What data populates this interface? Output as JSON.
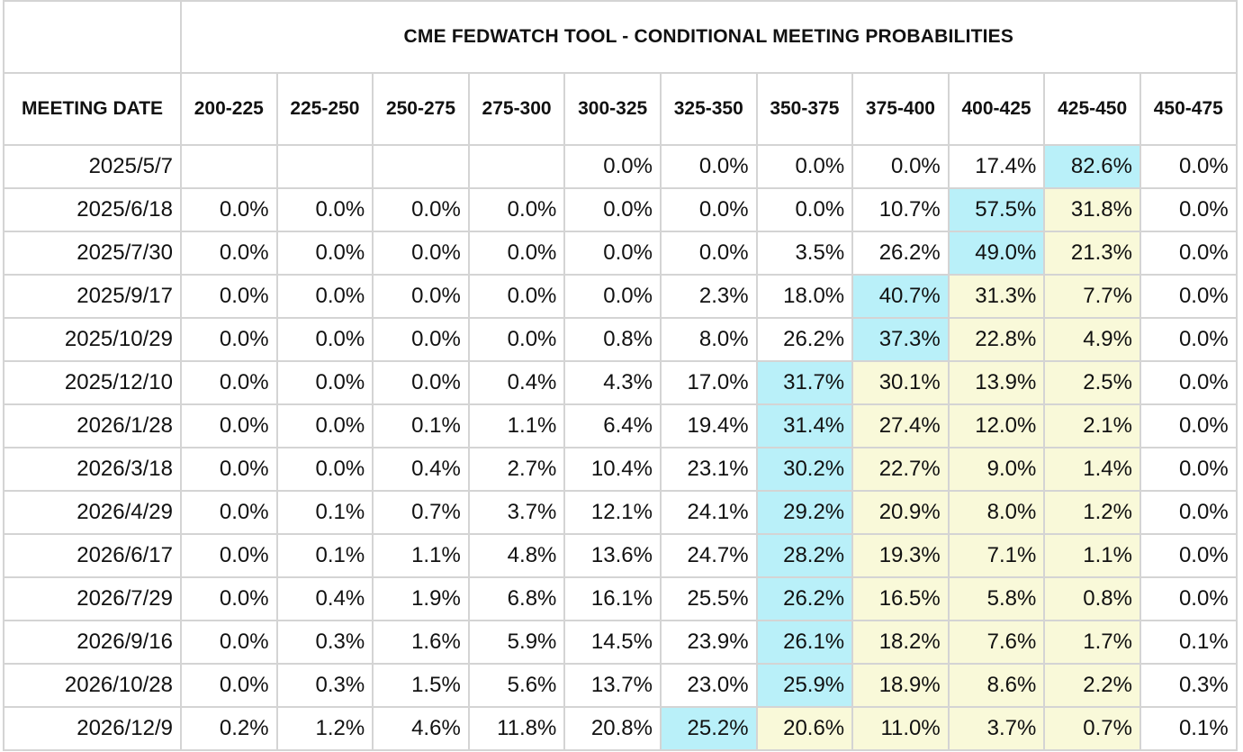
{
  "chart_data": {
    "type": "table",
    "title": "CME FEDWATCH TOOL - CONDITIONAL MEETING PROBABILITIES",
    "row_header_label": "MEETING DATE",
    "columns": [
      "200-225",
      "225-250",
      "250-275",
      "275-300",
      "300-325",
      "325-350",
      "350-375",
      "375-400",
      "400-425",
      "425-450",
      "450-475"
    ],
    "rows": [
      {
        "date": "2025/5/7",
        "values": [
          "",
          "",
          "",
          "",
          "0.0%",
          "0.0%",
          "0.0%",
          "0.0%",
          "17.4%",
          "82.6%",
          "0.0%"
        ]
      },
      {
        "date": "2025/6/18",
        "values": [
          "0.0%",
          "0.0%",
          "0.0%",
          "0.0%",
          "0.0%",
          "0.0%",
          "0.0%",
          "10.7%",
          "57.5%",
          "31.8%",
          "0.0%"
        ]
      },
      {
        "date": "2025/7/30",
        "values": [
          "0.0%",
          "0.0%",
          "0.0%",
          "0.0%",
          "0.0%",
          "0.0%",
          "3.5%",
          "26.2%",
          "49.0%",
          "21.3%",
          "0.0%"
        ]
      },
      {
        "date": "2025/9/17",
        "values": [
          "0.0%",
          "0.0%",
          "0.0%",
          "0.0%",
          "0.0%",
          "2.3%",
          "18.0%",
          "40.7%",
          "31.3%",
          "7.7%",
          "0.0%"
        ]
      },
      {
        "date": "2025/10/29",
        "values": [
          "0.0%",
          "0.0%",
          "0.0%",
          "0.0%",
          "0.8%",
          "8.0%",
          "26.2%",
          "37.3%",
          "22.8%",
          "4.9%",
          "0.0%"
        ]
      },
      {
        "date": "2025/12/10",
        "values": [
          "0.0%",
          "0.0%",
          "0.0%",
          "0.4%",
          "4.3%",
          "17.0%",
          "31.7%",
          "30.1%",
          "13.9%",
          "2.5%",
          "0.0%"
        ]
      },
      {
        "date": "2026/1/28",
        "values": [
          "0.0%",
          "0.0%",
          "0.1%",
          "1.1%",
          "6.4%",
          "19.4%",
          "31.4%",
          "27.4%",
          "12.0%",
          "2.1%",
          "0.0%"
        ]
      },
      {
        "date": "2026/3/18",
        "values": [
          "0.0%",
          "0.0%",
          "0.4%",
          "2.7%",
          "10.4%",
          "23.1%",
          "30.2%",
          "22.7%",
          "9.0%",
          "1.4%",
          "0.0%"
        ]
      },
      {
        "date": "2026/4/29",
        "values": [
          "0.0%",
          "0.1%",
          "0.7%",
          "3.7%",
          "12.1%",
          "24.1%",
          "29.2%",
          "20.9%",
          "8.0%",
          "1.2%",
          "0.0%"
        ]
      },
      {
        "date": "2026/6/17",
        "values": [
          "0.0%",
          "0.1%",
          "1.1%",
          "4.8%",
          "13.6%",
          "24.7%",
          "28.2%",
          "19.3%",
          "7.1%",
          "1.1%",
          "0.0%"
        ]
      },
      {
        "date": "2026/7/29",
        "values": [
          "0.0%",
          "0.4%",
          "1.9%",
          "6.8%",
          "16.1%",
          "25.5%",
          "26.2%",
          "16.5%",
          "5.8%",
          "0.8%",
          "0.0%"
        ]
      },
      {
        "date": "2026/9/16",
        "values": [
          "0.0%",
          "0.3%",
          "1.6%",
          "5.9%",
          "14.5%",
          "23.9%",
          "26.1%",
          "18.2%",
          "7.6%",
          "1.7%",
          "0.1%"
        ]
      },
      {
        "date": "2026/10/28",
        "values": [
          "0.0%",
          "0.3%",
          "1.5%",
          "5.6%",
          "13.7%",
          "23.0%",
          "25.9%",
          "18.9%",
          "8.6%",
          "2.2%",
          "0.3%"
        ]
      },
      {
        "date": "2026/12/9",
        "values": [
          "0.2%",
          "1.2%",
          "4.6%",
          "11.8%",
          "20.8%",
          "25.2%",
          "20.6%",
          "11.0%",
          "3.7%",
          "0.7%",
          "0.1%"
        ]
      }
    ],
    "highlight_colors": {
      "max_probability": "#b9f0f9",
      "at_or_above_max_rate_range": "#f9f9d9"
    },
    "highlights": {
      "blue_column_index_per_row": [
        9,
        8,
        8,
        7,
        7,
        6,
        6,
        6,
        6,
        6,
        6,
        6,
        6,
        5
      ],
      "yellow_ranges_per_row": [
        [],
        [
          9,
          9
        ],
        [
          9,
          9
        ],
        [
          8,
          9
        ],
        [
          8,
          9
        ],
        [
          7,
          9
        ],
        [
          7,
          9
        ],
        [
          7,
          9
        ],
        [
          7,
          9
        ],
        [
          7,
          9
        ],
        [
          7,
          9
        ],
        [
          7,
          9
        ],
        [
          7,
          9
        ],
        [
          6,
          9
        ]
      ]
    }
  }
}
